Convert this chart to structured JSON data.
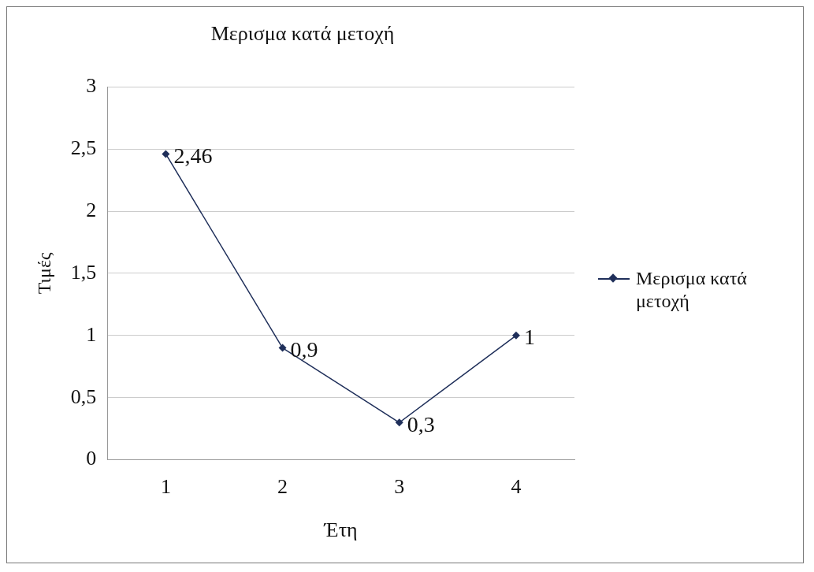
{
  "chart_data": {
    "type": "line",
    "title": "Μερισμα κατά μετοχή",
    "xlabel": "Έτη",
    "ylabel": "Τιμές",
    "categories": [
      "1",
      "2",
      "3",
      "4"
    ],
    "series": [
      {
        "name": "Μερισμα κατά μετοχή",
        "color": "#1f2f5a",
        "values": [
          2.46,
          0.9,
          0.3,
          1
        ],
        "value_labels": [
          "2,46",
          "0,9",
          "0,3",
          "1"
        ]
      }
    ],
    "ylim": [
      0,
      3
    ],
    "yticks": [
      0,
      {
        "value": 0.5,
        "label": "0,5"
      },
      1,
      {
        "value": 1.5,
        "label": "1,5"
      },
      2,
      {
        "value": 2.5,
        "label": "2,5"
      },
      3
    ],
    "grid": "y",
    "legend": "right",
    "marker": "diamond",
    "line_style": "solid"
  }
}
